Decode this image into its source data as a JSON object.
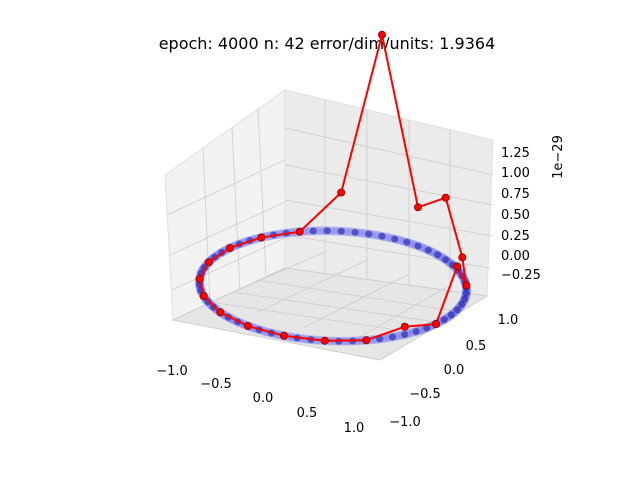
{
  "chart_data": {
    "type": "3d-line-scatter",
    "title": "epoch: 4000 n: 42 error/dim/units: 1.9364",
    "x_ticks": [
      "−1.0",
      "−0.5",
      "0.0",
      "0.5",
      "1.0"
    ],
    "y_ticks": [
      "−1.0",
      "−0.5",
      "0.0",
      "0.5",
      "1.0"
    ],
    "z_ticks": [
      "−0.25",
      "0.00",
      "0.25",
      "0.50",
      "0.75",
      "1.00",
      "1.25"
    ],
    "z_offset_label": "1e−29",
    "xlim": [
      -1.1,
      1.1
    ],
    "ylim": [
      -1.1,
      1.1
    ],
    "zlim": [
      -0.4,
      1.4
    ],
    "grid": true,
    "series": [
      {
        "style": "unit circle band",
        "color": "#6a6af0",
        "values": "cos(t), sin(t), 0"
      },
      {
        "style": "line with markers",
        "color": "#ff0000",
        "marker_edge": "#8b0000",
        "points": [
          {
            "x": 1.0,
            "y": 0.0,
            "z": 0.0
          },
          {
            "x": 0.951,
            "y": 0.309,
            "z": 0.28
          },
          {
            "x": 0.809,
            "y": 0.588,
            "z": 0.05
          },
          {
            "x": 0.588,
            "y": 0.809,
            "z": 0.12
          },
          {
            "x": 0.309,
            "y": 0.951,
            "z": 0.4
          },
          {
            "x": 0.0,
            "y": 1.0,
            "z": 0.25
          },
          {
            "x": -0.309,
            "y": 0.951,
            "z": 1.3
          },
          {
            "x": -0.588,
            "y": 0.809,
            "z": 0.25
          },
          {
            "x": -0.809,
            "y": 0.588,
            "z": 0.0
          },
          {
            "x": -0.951,
            "y": 0.309,
            "z": 0.0
          },
          {
            "x": -1.0,
            "y": 0.0,
            "z": 0.0
          },
          {
            "x": -0.951,
            "y": -0.309,
            "z": 0.0
          },
          {
            "x": -0.809,
            "y": -0.588,
            "z": 0.0
          },
          {
            "x": -0.588,
            "y": -0.809,
            "z": 0.0
          },
          {
            "x": -0.309,
            "y": -0.951,
            "z": 0.0
          },
          {
            "x": 0.0,
            "y": -1.0,
            "z": 0.0
          },
          {
            "x": 0.309,
            "y": -0.951,
            "z": 0.0
          },
          {
            "x": 0.588,
            "y": -0.809,
            "z": 0.0
          },
          {
            "x": 0.809,
            "y": -0.588,
            "z": 0.0
          },
          {
            "x": 0.951,
            "y": -0.309,
            "z": 0.05
          },
          {
            "x": 1.0,
            "y": 0.0,
            "z": 0.0
          }
        ]
      }
    ]
  }
}
